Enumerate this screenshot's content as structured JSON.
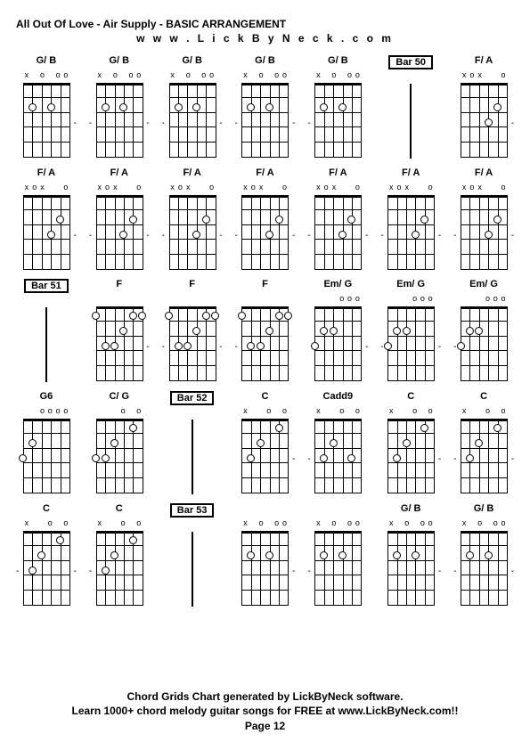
{
  "title": "All Out Of Love - Air Supply - BASIC ARRANGEMENT",
  "website": "w w w . L i c k B y N e c k . c o m",
  "footer_line1": "Chord Grids Chart generated by LickByNeck software.",
  "footer_line2": "Learn 1000+ chord melody guitar songs for FREE at www.LickByNeck.com!!",
  "page_label": "Page 12",
  "styling": {
    "bg_color": "#ffffff",
    "text_color": "#000000",
    "grid_color": "#000000",
    "dot_border": "#000000",
    "dot_fill": "#ffffff",
    "frets": 5,
    "strings": 6,
    "diagram_width": 52,
    "diagram_height": 84,
    "font_family": "Arial",
    "title_fontsize": 12,
    "label_fontsize": 11,
    "footer_fontsize": 12
  },
  "cells": [
    {
      "type": "chord",
      "name": "G/ B",
      "markers": [
        "x",
        "",
        "o",
        "",
        "o",
        "o"
      ],
      "dots": [
        [
          1,
          2
        ],
        [
          3,
          2
        ]
      ],
      "dash": "right"
    },
    {
      "type": "chord",
      "name": "G/ B",
      "markers": [
        "x",
        "",
        "o",
        "",
        "o",
        "o"
      ],
      "dots": [
        [
          1,
          2
        ],
        [
          3,
          2
        ]
      ],
      "dash": "both"
    },
    {
      "type": "chord",
      "name": "G/ B",
      "markers": [
        "x",
        "",
        "o",
        "",
        "o",
        "o"
      ],
      "dots": [
        [
          1,
          2
        ],
        [
          3,
          2
        ]
      ],
      "dash": "both"
    },
    {
      "type": "chord",
      "name": "G/ B",
      "markers": [
        "x",
        "",
        "o",
        "",
        "o",
        "o"
      ],
      "dots": [
        [
          1,
          2
        ],
        [
          3,
          2
        ]
      ],
      "dash": "both"
    },
    {
      "type": "chord",
      "name": "G/ B",
      "markers": [
        "x",
        "",
        "o",
        "",
        "o",
        "o"
      ],
      "dots": [
        [
          1,
          2
        ],
        [
          3,
          2
        ]
      ],
      "dash": "left"
    },
    {
      "type": "bar",
      "name": "Bar 50"
    },
    {
      "type": "chord",
      "name": "F/ A",
      "markers": [
        "x",
        "o",
        "x",
        "",
        "",
        "o"
      ],
      "dots": [
        [
          3,
          3
        ],
        [
          4,
          2
        ]
      ],
      "dash": "right"
    },
    {
      "type": "chord",
      "name": "F/ A",
      "markers": [
        "x",
        "o",
        "x",
        "",
        "",
        "o"
      ],
      "dots": [
        [
          3,
          3
        ],
        [
          4,
          2
        ]
      ],
      "dash": "right"
    },
    {
      "type": "chord",
      "name": "F/ A",
      "markers": [
        "x",
        "o",
        "x",
        "",
        "",
        "o"
      ],
      "dots": [
        [
          3,
          3
        ],
        [
          4,
          2
        ]
      ],
      "dash": "both"
    },
    {
      "type": "chord",
      "name": "F/ A",
      "markers": [
        "x",
        "o",
        "x",
        "",
        "",
        "o"
      ],
      "dots": [
        [
          3,
          3
        ],
        [
          4,
          2
        ]
      ],
      "dash": "both"
    },
    {
      "type": "chord",
      "name": "F/ A",
      "markers": [
        "x",
        "o",
        "x",
        "",
        "",
        "o"
      ],
      "dots": [
        [
          3,
          3
        ],
        [
          4,
          2
        ]
      ],
      "dash": "both"
    },
    {
      "type": "chord",
      "name": "F/ A",
      "markers": [
        "x",
        "o",
        "x",
        "",
        "",
        "o"
      ],
      "dots": [
        [
          3,
          3
        ],
        [
          4,
          2
        ]
      ],
      "dash": "both"
    },
    {
      "type": "chord",
      "name": "F/ A",
      "markers": [
        "x",
        "o",
        "x",
        "",
        "",
        "o"
      ],
      "dots": [
        [
          3,
          3
        ],
        [
          4,
          2
        ]
      ],
      "dash": "both"
    },
    {
      "type": "chord",
      "name": "F/ A",
      "markers": [
        "x",
        "o",
        "x",
        "",
        "",
        "o"
      ],
      "dots": [
        [
          3,
          3
        ],
        [
          4,
          2
        ]
      ],
      "dash": "both"
    },
    {
      "type": "bar",
      "name": "Bar 51"
    },
    {
      "type": "chord",
      "name": "F",
      "markers": [
        "",
        "",
        "",
        "",
        "",
        ""
      ],
      "dots": [
        [
          0,
          1
        ],
        [
          1,
          3
        ],
        [
          2,
          3
        ],
        [
          3,
          2
        ],
        [
          4,
          1
        ],
        [
          5,
          1
        ]
      ],
      "dash": "right"
    },
    {
      "type": "chord",
      "name": "F",
      "markers": [
        "",
        "",
        "",
        "",
        "",
        ""
      ],
      "dots": [
        [
          0,
          1
        ],
        [
          1,
          3
        ],
        [
          2,
          3
        ],
        [
          3,
          2
        ],
        [
          4,
          1
        ],
        [
          5,
          1
        ]
      ],
      "dash": "both"
    },
    {
      "type": "chord",
      "name": "F",
      "markers": [
        "",
        "",
        "",
        "",
        "",
        ""
      ],
      "dots": [
        [
          0,
          1
        ],
        [
          1,
          3
        ],
        [
          2,
          3
        ],
        [
          3,
          2
        ],
        [
          4,
          1
        ],
        [
          5,
          1
        ]
      ],
      "dash": "left"
    },
    {
      "type": "chord",
      "name": "Em/ G",
      "markers": [
        "",
        "",
        "",
        "o",
        "o",
        "o"
      ],
      "dots": [
        [
          0,
          3
        ],
        [
          1,
          2
        ],
        [
          2,
          2
        ]
      ],
      "dash": "right"
    },
    {
      "type": "chord",
      "name": "Em/ G",
      "markers": [
        "",
        "",
        "",
        "o",
        "o",
        "o"
      ],
      "dots": [
        [
          0,
          3
        ],
        [
          1,
          2
        ],
        [
          2,
          2
        ]
      ],
      "dash": "both"
    },
    {
      "type": "chord",
      "name": "Em/ G",
      "markers": [
        "",
        "",
        "",
        "o",
        "o",
        "o"
      ],
      "dots": [
        [
          0,
          3
        ],
        [
          1,
          2
        ],
        [
          2,
          2
        ]
      ],
      "dash": "left"
    },
    {
      "type": "chord",
      "name": "G6",
      "markers": [
        "",
        "",
        "o",
        "o",
        "o",
        "o"
      ],
      "dots": [
        [
          0,
          3
        ],
        [
          1,
          2
        ]
      ],
      "dash": "none"
    },
    {
      "type": "chord",
      "name": "C/ G",
      "markers": [
        "",
        "",
        "",
        "o",
        "",
        "o"
      ],
      "dots": [
        [
          0,
          3
        ],
        [
          1,
          3
        ],
        [
          2,
          2
        ],
        [
          4,
          1
        ]
      ],
      "dash": "none"
    },
    {
      "type": "bar",
      "name": "Bar 52"
    },
    {
      "type": "chord",
      "name": "C",
      "markers": [
        "x",
        "",
        "",
        "o",
        "",
        "o"
      ],
      "dots": [
        [
          1,
          3
        ],
        [
          2,
          2
        ],
        [
          4,
          1
        ]
      ],
      "dash": "right"
    },
    {
      "type": "chord",
      "name": "Cadd9",
      "markers": [
        "x",
        "",
        "",
        "o",
        "",
        "o"
      ],
      "dots": [
        [
          1,
          3
        ],
        [
          2,
          2
        ],
        [
          4,
          3
        ]
      ],
      "dash": "left"
    },
    {
      "type": "chord",
      "name": "C",
      "markers": [
        "x",
        "",
        "",
        "o",
        "",
        "o"
      ],
      "dots": [
        [
          1,
          3
        ],
        [
          2,
          2
        ],
        [
          4,
          1
        ]
      ],
      "dash": "right"
    },
    {
      "type": "chord",
      "name": "C",
      "markers": [
        "x",
        "",
        "",
        "o",
        "",
        "o"
      ],
      "dots": [
        [
          1,
          3
        ],
        [
          2,
          2
        ],
        [
          4,
          1
        ]
      ],
      "dash": "both"
    },
    {
      "type": "chord",
      "name": "C",
      "markers": [
        "x",
        "",
        "",
        "o",
        "",
        "o"
      ],
      "dots": [
        [
          1,
          3
        ],
        [
          2,
          2
        ],
        [
          4,
          1
        ]
      ],
      "dash": "both"
    },
    {
      "type": "chord",
      "name": "C",
      "markers": [
        "x",
        "",
        "",
        "o",
        "",
        "o"
      ],
      "dots": [
        [
          1,
          3
        ],
        [
          2,
          2
        ],
        [
          4,
          1
        ]
      ],
      "dash": "left"
    },
    {
      "type": "bar",
      "name": "Bar 53"
    },
    {
      "type": "chord",
      "name": "",
      "markers": [
        "x",
        "",
        "o",
        "",
        "o",
        "o"
      ],
      "dots": [
        [
          1,
          2
        ],
        [
          3,
          2
        ]
      ],
      "dash": "right"
    },
    {
      "type": "chord",
      "name": "",
      "markers": [
        "x",
        "",
        "o",
        "",
        "o",
        "o"
      ],
      "dots": [
        [
          1,
          2
        ],
        [
          3,
          2
        ]
      ],
      "dash": "left"
    },
    {
      "type": "chord",
      "name": "G/ B",
      "markers": [
        "x",
        "",
        "o",
        "",
        "o",
        "o"
      ],
      "dots": [
        [
          1,
          2
        ],
        [
          3,
          2
        ]
      ],
      "dash": "right"
    },
    {
      "type": "chord",
      "name": "G/ B",
      "markers": [
        "x",
        "",
        "o",
        "",
        "o",
        "o"
      ],
      "dots": [
        [
          1,
          2
        ],
        [
          3,
          2
        ]
      ],
      "dash": "both"
    }
  ]
}
